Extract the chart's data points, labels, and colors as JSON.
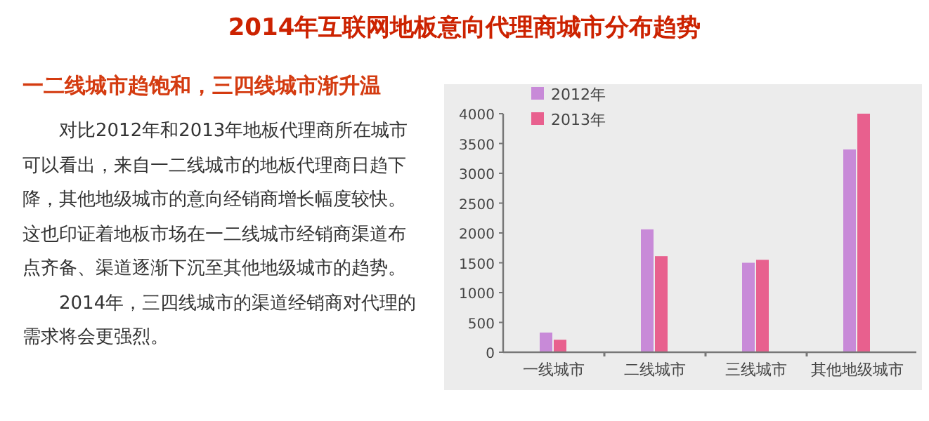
{
  "chart_data": {
    "type": "bar",
    "title": "2014年互联网地板意向代理商城市分布趋势",
    "subtitle": "一二线城市趋饱和，三四线城市渐升温",
    "annotations": [
      "对比2012年和2013年地板代理商所在城市可以看出，来自一二线城市的地板代理商日趋下降，其他地级城市的意向经销商增长幅度较快。这也印证着地板市场在一二线城市经销商渠道布点齐备、渠道逐渐下沉至其他地级城市的趋势。",
      "2014年，三四线城市的渠道经销商对代理的需求将会更强烈。"
    ],
    "categories": [
      "一线城市",
      "二线城市",
      "三线城市",
      "其他地级城市"
    ],
    "series": [
      {
        "name": "2012年",
        "color": "#c88ad8",
        "values": [
          330,
          2060,
          1500,
          3400
        ]
      },
      {
        "name": "2013年",
        "color": "#e8608e",
        "values": [
          210,
          1610,
          1550,
          4000
        ]
      }
    ],
    "ylim": [
      0,
      4000
    ],
    "yticks": [
      0,
      500,
      1000,
      1500,
      2000,
      2500,
      3000,
      3500,
      4000
    ],
    "legend": "top left",
    "grid": false
  }
}
